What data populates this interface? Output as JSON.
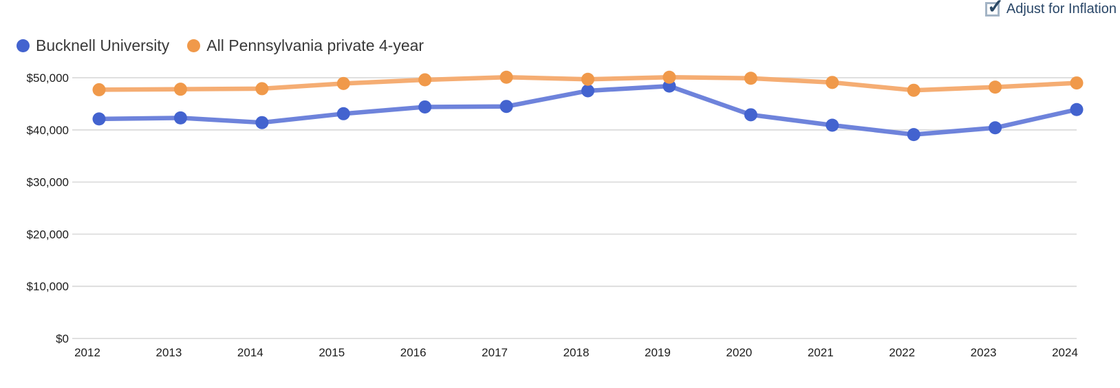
{
  "controls": {
    "adjust_for_inflation": {
      "label": "Adjust for Inflation",
      "checked": true,
      "checkmark": "✓"
    }
  },
  "legend": {
    "items": [
      {
        "label": "Bucknell University",
        "color": "#4363cf"
      },
      {
        "label": "All Pennsylvania private 4-year",
        "color": "#f0994a"
      }
    ]
  },
  "chart_data": {
    "type": "line",
    "x": [
      2012,
      2013,
      2014,
      2015,
      2016,
      2017,
      2018,
      2019,
      2020,
      2021,
      2022,
      2023,
      2024
    ],
    "x_tick_labels": [
      "2012",
      "2013",
      "2014",
      "2015",
      "2016",
      "2017",
      "2018",
      "2019",
      "2020",
      "2021",
      "2022",
      "2023",
      "2024"
    ],
    "series": [
      {
        "name": "Bucknell University",
        "color": "#4363cf",
        "line_color": "#6e83db",
        "values": [
          42100,
          42300,
          41400,
          43100,
          44400,
          44500,
          47500,
          48400,
          42900,
          40900,
          39100,
          40400,
          43900
        ]
      },
      {
        "name": "All Pennsylvania private 4-year",
        "color": "#f0994a",
        "line_color": "#f5ad73",
        "values": [
          47700,
          47800,
          47900,
          48900,
          49600,
          50100,
          49700,
          50100,
          49900,
          49100,
          47600,
          48200,
          49000
        ]
      }
    ],
    "ylim": [
      0,
      50000
    ],
    "y_ticks": [
      {
        "value": 0,
        "label": "$0"
      },
      {
        "value": 10000,
        "label": "$10,000"
      },
      {
        "value": 20000,
        "label": "$20,000"
      },
      {
        "value": 30000,
        "label": "$30,000"
      },
      {
        "value": 40000,
        "label": "$40,000"
      },
      {
        "value": 50000,
        "label": "$50,000"
      }
    ],
    "grid": true,
    "legend_position": "top-left",
    "tick_label_color": "#1c1c1c",
    "gridline_color": "#dcdcdc"
  }
}
